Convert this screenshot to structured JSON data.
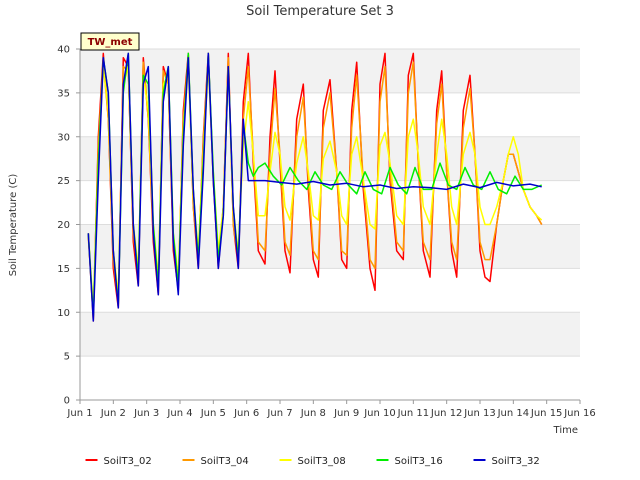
{
  "chart_data": {
    "type": "line",
    "title": "Soil Temperature Set 3",
    "xlabel": "Time",
    "ylabel": "Soil Temperature (C)",
    "xlim": [
      1,
      16
    ],
    "ylim": [
      0,
      40
    ],
    "y_ticks": [
      0,
      5,
      10,
      15,
      20,
      25,
      30,
      35,
      40
    ],
    "x_ticks": [
      {
        "value": 1,
        "label": "Jun 1"
      },
      {
        "value": 2,
        "label": "Jun 2"
      },
      {
        "value": 3,
        "label": "Jun 3"
      },
      {
        "value": 4,
        "label": "Jun 4"
      },
      {
        "value": 5,
        "label": "Jun 5"
      },
      {
        "value": 6,
        "label": "Jun 6"
      },
      {
        "value": 7,
        "label": "Jun 7"
      },
      {
        "value": 8,
        "label": "Jun 8"
      },
      {
        "value": 9,
        "label": "Jun 9"
      },
      {
        "value": 10,
        "label": "Jun 10"
      },
      {
        "value": 11,
        "label": "Jun 11"
      },
      {
        "value": 12,
        "label": "Jun 12"
      },
      {
        "value": 13,
        "label": "Jun 13"
      },
      {
        "value": 14,
        "label": "Jun 14"
      },
      {
        "value": 15,
        "label": "Jun 15"
      },
      {
        "value": 16,
        "label": "Jun 16"
      }
    ],
    "grid": true,
    "legend_position": "bottom",
    "station_label": "TW_met",
    "series": [
      {
        "name": "SoilT3_02",
        "color": "#ff0000",
        "x": [
          1.25,
          1.4,
          1.55,
          1.7,
          1.85,
          2.0,
          2.15,
          2.3,
          2.45,
          2.6,
          2.75,
          2.9,
          3.05,
          3.2,
          3.35,
          3.5,
          3.65,
          3.8,
          3.95,
          4.1,
          4.25,
          4.4,
          4.55,
          4.7,
          4.85,
          5.0,
          5.15,
          5.3,
          5.45,
          5.6,
          5.75,
          5.9,
          6.05,
          6.2,
          6.35,
          6.55,
          6.7,
          6.85,
          7.0,
          7.15,
          7.3,
          7.5,
          7.7,
          7.85,
          8.0,
          8.15,
          8.3,
          8.5,
          8.7,
          8.85,
          9.0,
          9.15,
          9.3,
          9.5,
          9.7,
          9.85,
          10.0,
          10.15,
          10.3,
          10.5,
          10.7,
          10.85,
          11.0,
          11.15,
          11.3,
          11.5,
          11.7,
          11.85,
          12.0,
          12.15,
          12.3,
          12.5,
          12.7,
          12.85,
          13.0,
          13.15,
          13.3,
          13.5,
          13.7,
          13.85,
          14.0,
          14.15,
          14.3,
          14.5,
          14.7,
          14.85
        ],
        "y": [
          19,
          9,
          30,
          39.5,
          32,
          15,
          10.5,
          39,
          38,
          18,
          13,
          39,
          32,
          18,
          12,
          38,
          36,
          17,
          12.5,
          33,
          39.5,
          22,
          15,
          30,
          39.5,
          25,
          15,
          22,
          39.5,
          20,
          15,
          34,
          39.5,
          27,
          17,
          15.5,
          30,
          37.5,
          27,
          17,
          14.5,
          32,
          36,
          24,
          16,
          14,
          33,
          36.5,
          26,
          16,
          15,
          33,
          38.5,
          24,
          15,
          12.5,
          36,
          39.5,
          25,
          17,
          16,
          37,
          39.5,
          27,
          17,
          14,
          33,
          37.5,
          26,
          17,
          14,
          33,
          37,
          28,
          17,
          14,
          13.5,
          20,
          25,
          28,
          28,
          26,
          24,
          22,
          21,
          20
        ]
      },
      {
        "name": "SoilT3_04",
        "color": "#ff9900",
        "x": [
          1.25,
          1.4,
          1.55,
          1.7,
          1.85,
          2.0,
          2.15,
          2.3,
          2.45,
          2.6,
          2.75,
          2.9,
          3.05,
          3.2,
          3.35,
          3.5,
          3.65,
          3.8,
          3.95,
          4.1,
          4.25,
          4.4,
          4.55,
          4.7,
          4.85,
          5.0,
          5.15,
          5.3,
          5.45,
          5.6,
          5.75,
          5.9,
          6.05,
          6.2,
          6.35,
          6.55,
          6.7,
          6.85,
          7.0,
          7.15,
          7.3,
          7.5,
          7.7,
          7.85,
          8.0,
          8.15,
          8.3,
          8.5,
          8.7,
          8.85,
          9.0,
          9.15,
          9.3,
          9.5,
          9.7,
          9.85,
          10.0,
          10.15,
          10.3,
          10.5,
          10.7,
          10.85,
          11.0,
          11.15,
          11.3,
          11.5,
          11.7,
          11.85,
          12.0,
          12.15,
          12.3,
          12.5,
          12.7,
          12.85,
          13.0,
          13.15,
          13.3,
          13.5,
          13.7,
          13.85,
          14.0,
          14.15,
          14.3,
          14.5,
          14.7,
          14.85
        ],
        "y": [
          18.5,
          10,
          29,
          38.5,
          32,
          16,
          11,
          38,
          37.5,
          19,
          14,
          38.5,
          32,
          19,
          13,
          37.5,
          36,
          18,
          13,
          32,
          39,
          22,
          16,
          29.5,
          39,
          25,
          16,
          22,
          39,
          20,
          16,
          32,
          38,
          28,
          18,
          17,
          28,
          35.5,
          28,
          18,
          16.5,
          30,
          34.5,
          25,
          17,
          16,
          31,
          35,
          26,
          17,
          16.5,
          31,
          37,
          25,
          16,
          15,
          34,
          38,
          26,
          18,
          17,
          35,
          38.5,
          27,
          18,
          16,
          31.5,
          36,
          26,
          18,
          16,
          31,
          35.5,
          28,
          18,
          16,
          16,
          20,
          25,
          28,
          28,
          26,
          24,
          22,
          21,
          20
        ]
      },
      {
        "name": "SoilT3_08",
        "color": "#ffff00",
        "x": [
          1.25,
          1.4,
          1.55,
          1.7,
          1.85,
          2.0,
          2.15,
          2.3,
          2.45,
          2.6,
          2.75,
          2.9,
          3.05,
          3.2,
          3.35,
          3.5,
          3.65,
          3.8,
          3.95,
          4.1,
          4.25,
          4.4,
          4.55,
          4.7,
          4.85,
          5.0,
          5.15,
          5.3,
          5.45,
          5.6,
          5.75,
          5.9,
          6.05,
          6.2,
          6.35,
          6.55,
          6.7,
          6.85,
          7.0,
          7.15,
          7.3,
          7.5,
          7.7,
          7.85,
          8.0,
          8.15,
          8.3,
          8.5,
          8.7,
          8.85,
          9.0,
          9.15,
          9.3,
          9.5,
          9.7,
          9.85,
          10.0,
          10.15,
          10.3,
          10.5,
          10.7,
          10.85,
          11.0,
          11.15,
          11.3,
          11.5,
          11.7,
          11.85,
          12.0,
          12.15,
          12.3,
          12.5,
          12.7,
          12.85,
          13.0,
          13.15,
          13.3,
          13.5,
          13.7,
          13.85,
          14.0,
          14.15,
          14.3,
          14.5,
          14.7,
          14.85
        ],
        "y": [
          19,
          10.5,
          27,
          38,
          33,
          17,
          12,
          36,
          38,
          20,
          15,
          37,
          33,
          20,
          14,
          36,
          37,
          19,
          14,
          31,
          38,
          23,
          17,
          28,
          38,
          26,
          17,
          22,
          38,
          21,
          17,
          29,
          34,
          28,
          21,
          21,
          26,
          30.5,
          28,
          22,
          20.5,
          27,
          30,
          26,
          21,
          20.5,
          27.5,
          29.5,
          26,
          21,
          20,
          28,
          30,
          25,
          20,
          19.5,
          29,
          30.5,
          27,
          21,
          20,
          30,
          32,
          28,
          22,
          20,
          28,
          32,
          28,
          22,
          20,
          28,
          30.5,
          28,
          22,
          20,
          20,
          22,
          25,
          28,
          30,
          28,
          24,
          22,
          21,
          20.5
        ]
      },
      {
        "name": "SoilT3_16",
        "color": "#00ee00",
        "x": [
          1.25,
          1.4,
          1.55,
          1.7,
          1.85,
          2.0,
          2.15,
          2.3,
          2.45,
          2.6,
          2.75,
          2.9,
          3.05,
          3.2,
          3.35,
          3.5,
          3.65,
          3.8,
          3.95,
          4.1,
          4.25,
          4.4,
          4.55,
          4.7,
          4.85,
          5.0,
          5.15,
          5.3,
          5.45,
          5.6,
          5.75,
          5.9,
          6.05,
          6.2,
          6.35,
          6.55,
          6.8,
          7.05,
          7.3,
          7.55,
          7.8,
          8.05,
          8.3,
          8.55,
          8.8,
          9.05,
          9.3,
          9.55,
          9.8,
          10.05,
          10.3,
          10.55,
          10.8,
          11.05,
          11.3,
          11.55,
          11.8,
          12.05,
          12.3,
          12.55,
          12.8,
          13.05,
          13.3,
          13.55,
          13.8,
          14.05,
          14.3,
          14.55,
          14.85
        ],
        "y": [
          19,
          9.5,
          27,
          39,
          35,
          17,
          11,
          35,
          39.5,
          20,
          14,
          37,
          36,
          20,
          13,
          35,
          38,
          19,
          13,
          30,
          39.5,
          24,
          16,
          27,
          39.5,
          26,
          16,
          21,
          38,
          22,
          16,
          31.5,
          27,
          25.5,
          26.5,
          27,
          25.5,
          24.5,
          26.5,
          25,
          24,
          26,
          24.5,
          24,
          26,
          24.5,
          23.5,
          26,
          24,
          23.5,
          26.5,
          24.5,
          23.5,
          26.5,
          24,
          24,
          27,
          24.5,
          24,
          26.5,
          24.5,
          24,
          26,
          24,
          23.5,
          25.5,
          24,
          24,
          24.5
        ]
      },
      {
        "name": "SoilT3_32",
        "color": "#0000cc",
        "x": [
          1.25,
          1.4,
          1.55,
          1.7,
          1.85,
          2.0,
          2.15,
          2.3,
          2.45,
          2.6,
          2.75,
          2.9,
          3.05,
          3.2,
          3.35,
          3.5,
          3.65,
          3.8,
          3.95,
          4.1,
          4.25,
          4.4,
          4.55,
          4.7,
          4.85,
          5.0,
          5.15,
          5.3,
          5.45,
          5.6,
          5.75,
          5.9,
          6.05,
          6.2,
          6.35,
          6.55,
          7.0,
          7.5,
          8.0,
          8.5,
          9.0,
          9.5,
          10.0,
          10.5,
          11.0,
          11.5,
          12.0,
          12.5,
          13.0,
          13.5,
          14.0,
          14.5,
          14.85
        ],
        "y": [
          19,
          9,
          25,
          39,
          35,
          17,
          10.5,
          36,
          39.5,
          20,
          13,
          36,
          38,
          19,
          12,
          34,
          38,
          18,
          12,
          29,
          39,
          24,
          15,
          26,
          39.5,
          25,
          15,
          21,
          38,
          22,
          15,
          32,
          25,
          25,
          25,
          25,
          24.8,
          24.6,
          24.9,
          24.5,
          24.7,
          24.3,
          24.5,
          24.1,
          24.3,
          24.2,
          24,
          24.6,
          24.2,
          24.8,
          24.4,
          24.6,
          24.3
        ]
      }
    ]
  }
}
